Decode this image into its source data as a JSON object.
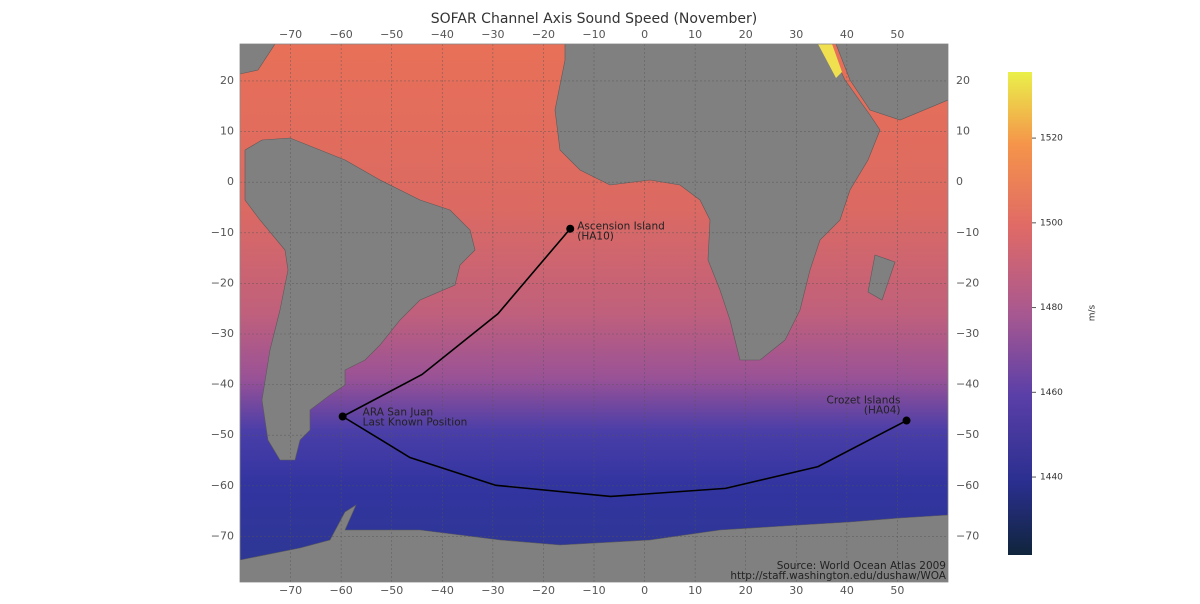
{
  "title": "SOFAR Channel Axis Sound Speed (November)",
  "map": {
    "xlim": [
      -80,
      60
    ],
    "ylim": [
      -79,
      27.3
    ],
    "xticks": [
      {
        "value": -70,
        "label": "−70"
      },
      {
        "value": -60,
        "label": "−60"
      },
      {
        "value": -50,
        "label": "−50"
      },
      {
        "value": -40,
        "label": "−40"
      },
      {
        "value": -30,
        "label": "−30"
      },
      {
        "value": -20,
        "label": "−20"
      },
      {
        "value": -10,
        "label": "−10"
      },
      0,
      10,
      20,
      30,
      40,
      50
    ],
    "yticks": [
      {
        "value": -70,
        "label": "−70"
      },
      {
        "value": -60,
        "label": "−60"
      },
      {
        "value": -50,
        "label": "−50"
      },
      {
        "value": -40,
        "label": "−40"
      },
      {
        "value": -30,
        "label": "−30"
      },
      {
        "value": -20,
        "label": "−20"
      },
      {
        "value": -10,
        "label": "−10"
      },
      0,
      10,
      20
    ],
    "grid": true,
    "stations": [
      {
        "name_lines": [
          "Ascension Island",
          "(HA10)"
        ],
        "lon": -14.7,
        "lat": -9.2
      },
      {
        "name_lines": [
          "ARA San Juan",
          "Last Known Position"
        ],
        "lon": -59.7,
        "lat": -46.3
      },
      {
        "name_lines": [
          "Crozet Islands",
          "(HA04)"
        ],
        "lon": 51.8,
        "lat": -47.1
      }
    ],
    "tracks": [
      {
        "lon": [
          -59.7,
          -44,
          -29,
          -14.7
        ],
        "lat": [
          -46.3,
          -38,
          -26,
          -9.2
        ]
      },
      {
        "lon": [
          -59.7,
          -46.4,
          -29.4,
          -6.7,
          16.0,
          34.3,
          51.8
        ],
        "lat": [
          -46.3,
          -54.4,
          -59.9,
          -62.1,
          -60.5,
          -56.2,
          -47.1
        ]
      }
    ],
    "source_lines": [
      "Source: World Ocean Atlas 2009",
      "http://staff.washington.edu/dushaw/WOA"
    ]
  },
  "colorbar": {
    "label": "m/s",
    "lim": [
      1421.6,
      1535.6
    ],
    "ticks": [
      1440,
      1460,
      1480,
      1500,
      1520
    ]
  }
}
